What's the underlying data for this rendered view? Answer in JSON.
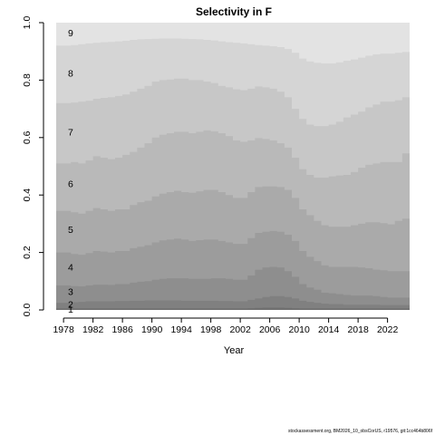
{
  "chart_data": {
    "type": "area",
    "title": "Selectivity in F",
    "xlabel": "Year",
    "ylabel": "",
    "xlim": [
      1977,
      2025
    ],
    "ylim": [
      0,
      1
    ],
    "x_ticks": [
      1978,
      1982,
      1986,
      1990,
      1994,
      1998,
      2002,
      2006,
      2010,
      2014,
      2018,
      2022
    ],
    "y_ticks": [
      0.0,
      0.2,
      0.4,
      0.6,
      0.8,
      1.0
    ],
    "grid": false,
    "legend": "none",
    "years": [
      1977,
      1978,
      1979,
      1980,
      1981,
      1982,
      1983,
      1984,
      1985,
      1986,
      1987,
      1988,
      1989,
      1990,
      1991,
      1992,
      1993,
      1994,
      1995,
      1996,
      1997,
      1998,
      1999,
      2000,
      2001,
      2002,
      2003,
      2004,
      2005,
      2006,
      2007,
      2008,
      2009,
      2010,
      2011,
      2012,
      2013,
      2014,
      2015,
      2016,
      2017,
      2018,
      2019,
      2020,
      2021,
      2022,
      2023,
      2024
    ],
    "series": [
      {
        "name": "1",
        "color": "#707070",
        "cumulative": [
          0.005,
          0.005,
          0.005,
          0.005,
          0.005,
          0.005,
          0.005,
          0.005,
          0.005,
          0.005,
          0.005,
          0.005,
          0.005,
          0.005,
          0.005,
          0.005,
          0.005,
          0.005,
          0.005,
          0.005,
          0.005,
          0.005,
          0.005,
          0.005,
          0.005,
          0.005,
          0.006,
          0.007,
          0.008,
          0.008,
          0.008,
          0.007,
          0.006,
          0.005,
          0.005,
          0.005,
          0.005,
          0.005,
          0.005,
          0.005,
          0.005,
          0.005,
          0.005,
          0.005,
          0.005,
          0.005,
          0.005,
          0.005
        ]
      },
      {
        "name": "2",
        "color": "#808080",
        "cumulative": [
          0.025,
          0.025,
          0.027,
          0.028,
          0.03,
          0.03,
          0.03,
          0.03,
          0.031,
          0.031,
          0.032,
          0.032,
          0.033,
          0.033,
          0.033,
          0.033,
          0.033,
          0.032,
          0.032,
          0.032,
          0.032,
          0.032,
          0.031,
          0.031,
          0.03,
          0.03,
          0.035,
          0.04,
          0.045,
          0.048,
          0.048,
          0.045,
          0.04,
          0.032,
          0.028,
          0.025,
          0.022,
          0.02,
          0.02,
          0.018,
          0.018,
          0.018,
          0.018,
          0.018,
          0.017,
          0.017,
          0.017,
          0.017
        ]
      },
      {
        "name": "3",
        "color": "#8e8e8e",
        "cumulative": [
          0.085,
          0.085,
          0.083,
          0.082,
          0.085,
          0.088,
          0.088,
          0.087,
          0.09,
          0.09,
          0.095,
          0.098,
          0.1,
          0.105,
          0.108,
          0.11,
          0.11,
          0.11,
          0.108,
          0.108,
          0.108,
          0.11,
          0.11,
          0.108,
          0.105,
          0.105,
          0.12,
          0.14,
          0.148,
          0.15,
          0.148,
          0.135,
          0.115,
          0.09,
          0.078,
          0.07,
          0.06,
          0.058,
          0.055,
          0.052,
          0.05,
          0.05,
          0.05,
          0.048,
          0.045,
          0.043,
          0.043,
          0.043
        ]
      },
      {
        "name": "4",
        "color": "#9c9c9c",
        "cumulative": [
          0.2,
          0.2,
          0.195,
          0.192,
          0.198,
          0.205,
          0.203,
          0.2,
          0.205,
          0.205,
          0.215,
          0.22,
          0.225,
          0.235,
          0.242,
          0.245,
          0.248,
          0.245,
          0.24,
          0.243,
          0.245,
          0.245,
          0.24,
          0.235,
          0.23,
          0.23,
          0.25,
          0.268,
          0.272,
          0.275,
          0.272,
          0.262,
          0.24,
          0.205,
          0.185,
          0.17,
          0.155,
          0.15,
          0.15,
          0.15,
          0.15,
          0.148,
          0.145,
          0.14,
          0.138,
          0.135,
          0.135,
          0.135
        ]
      },
      {
        "name": "5",
        "color": "#aaaaaa",
        "cumulative": [
          0.345,
          0.345,
          0.34,
          0.335,
          0.345,
          0.355,
          0.35,
          0.345,
          0.35,
          0.35,
          0.365,
          0.375,
          0.38,
          0.395,
          0.405,
          0.41,
          0.415,
          0.41,
          0.408,
          0.413,
          0.418,
          0.418,
          0.41,
          0.4,
          0.39,
          0.39,
          0.41,
          0.428,
          0.43,
          0.43,
          0.428,
          0.418,
          0.39,
          0.35,
          0.33,
          0.31,
          0.295,
          0.29,
          0.29,
          0.29,
          0.295,
          0.3,
          0.305,
          0.305,
          0.302,
          0.298,
          0.31,
          0.318
        ]
      },
      {
        "name": "6",
        "color": "#b9b9b9",
        "cumulative": [
          0.51,
          0.51,
          0.515,
          0.51,
          0.52,
          0.535,
          0.53,
          0.525,
          0.53,
          0.54,
          0.55,
          0.565,
          0.58,
          0.6,
          0.61,
          0.615,
          0.62,
          0.62,
          0.615,
          0.62,
          0.625,
          0.622,
          0.615,
          0.605,
          0.59,
          0.585,
          0.59,
          0.598,
          0.595,
          0.59,
          0.58,
          0.565,
          0.53,
          0.49,
          0.47,
          0.46,
          0.46,
          0.465,
          0.468,
          0.47,
          0.48,
          0.495,
          0.505,
          0.51,
          0.515,
          0.515,
          0.515,
          0.545
        ]
      },
      {
        "name": "7",
        "color": "#c7c7c7",
        "cumulative": [
          0.72,
          0.72,
          0.722,
          0.725,
          0.728,
          0.735,
          0.738,
          0.74,
          0.745,
          0.75,
          0.76,
          0.77,
          0.78,
          0.795,
          0.8,
          0.802,
          0.805,
          0.805,
          0.8,
          0.8,
          0.795,
          0.79,
          0.78,
          0.775,
          0.768,
          0.765,
          0.77,
          0.778,
          0.775,
          0.77,
          0.76,
          0.74,
          0.7,
          0.665,
          0.645,
          0.64,
          0.64,
          0.645,
          0.655,
          0.67,
          0.68,
          0.69,
          0.705,
          0.715,
          0.725,
          0.725,
          0.73,
          0.74
        ]
      },
      {
        "name": "8",
        "color": "#d5d5d5",
        "cumulative": [
          0.92,
          0.92,
          0.922,
          0.925,
          0.928,
          0.93,
          0.932,
          0.933,
          0.935,
          0.937,
          0.94,
          0.942,
          0.943,
          0.944,
          0.945,
          0.945,
          0.945,
          0.944,
          0.943,
          0.942,
          0.94,
          0.938,
          0.935,
          0.932,
          0.93,
          0.928,
          0.925,
          0.922,
          0.92,
          0.918,
          0.915,
          0.908,
          0.895,
          0.875,
          0.865,
          0.86,
          0.858,
          0.858,
          0.862,
          0.868,
          0.872,
          0.878,
          0.885,
          0.89,
          0.892,
          0.892,
          0.895,
          0.898
        ]
      },
      {
        "name": "9",
        "color": "#e3e3e3",
        "cumulative": [
          1,
          1,
          1,
          1,
          1,
          1,
          1,
          1,
          1,
          1,
          1,
          1,
          1,
          1,
          1,
          1,
          1,
          1,
          1,
          1,
          1,
          1,
          1,
          1,
          1,
          1,
          1,
          1,
          1,
          1,
          1,
          1,
          1,
          1,
          1,
          1,
          1,
          1,
          1,
          1,
          1,
          1,
          1,
          1,
          1,
          1,
          1,
          1
        ]
      }
    ],
    "series_label_positions": [
      {
        "name": "1",
        "y": 0.003
      },
      {
        "name": "2",
        "y": 0.02
      },
      {
        "name": "3",
        "y": 0.065
      },
      {
        "name": "4",
        "y": 0.15
      },
      {
        "name": "5",
        "y": 0.28
      },
      {
        "name": "6",
        "y": 0.44
      },
      {
        "name": "7",
        "y": 0.62
      },
      {
        "name": "8",
        "y": 0.825
      },
      {
        "name": "9",
        "y": 0.965
      }
    ],
    "label_x": 1978.6
  },
  "footnote": "stockassessment.org, BM2026_10_obsCorUS, r19576, git:1cc464b806f"
}
